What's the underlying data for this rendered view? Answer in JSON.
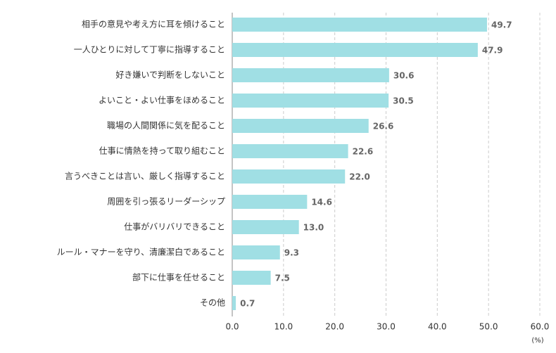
{
  "chart_data": {
    "type": "bar",
    "orientation": "horizontal",
    "categories": [
      "相手の意見や考え方に耳を傾けること",
      "一人ひとりに対して丁寧に指導すること",
      "好き嫌いで判断をしないこと",
      "よいこと・よい仕事をほめること",
      "職場の人間関係に気を配ること",
      "仕事に情熱を持って取り組むこと",
      "言うべきことは言い、厳しく指導すること",
      "周囲を引っ張るリーダーシップ",
      "仕事がバリバリできること",
      "ルール・マナーを守り、清廉潔白であること",
      "部下に仕事を任せること",
      "その他"
    ],
    "values": [
      49.7,
      47.9,
      30.6,
      30.5,
      26.6,
      22.6,
      22.0,
      14.6,
      13.0,
      9.3,
      7.5,
      0.7
    ],
    "value_labels": [
      "49.7",
      "47.9",
      "30.6",
      "30.5",
      "26.6",
      "22.6",
      "22.0",
      "14.6",
      "13.0",
      "9.3",
      "7.5",
      "0.7"
    ],
    "color": "#a0dfe4",
    "xlim": [
      0,
      60
    ],
    "xticks": [
      {
        "value": 0,
        "label": "0.0"
      },
      {
        "value": 10,
        "label": "10.0"
      },
      {
        "value": 20,
        "label": "20.0"
      },
      {
        "value": 30,
        "label": "30.0"
      },
      {
        "value": 40,
        "label": "40.0"
      },
      {
        "value": 50,
        "label": "50.0"
      },
      {
        "value": 60,
        "label": "60.0"
      }
    ],
    "xlabel": "(%)",
    "grid": true
  }
}
